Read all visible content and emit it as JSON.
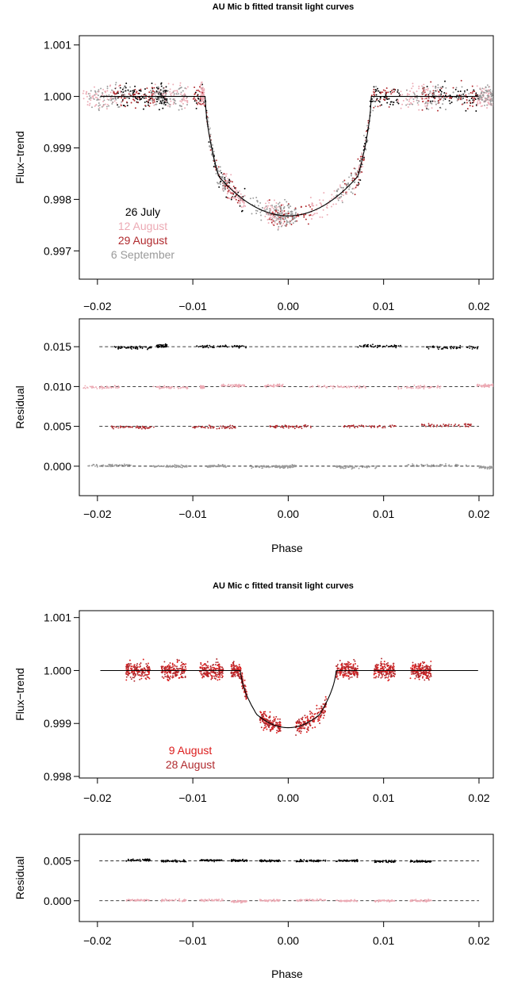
{
  "figure": {
    "title_b": "AU Mic b fitted transit light curves",
    "title_c": "AU Mic c fitted transit light curves"
  },
  "colors": {
    "black": "#000000",
    "pink": "#ecaab4",
    "darkred": "#b02a2e",
    "gray": "#9a9a9a",
    "red": "#dc1c1c"
  },
  "chart_data": [
    {
      "type": "scatter",
      "title": "AU Mic b fitted transit light curves",
      "xlabel": "",
      "ylabel": "Flux−trend",
      "xlim": [
        -0.0219,
        0.0215
      ],
      "ylim": [
        0.99645,
        1.00118
      ],
      "x_ticks": [
        "-0.02",
        "-0.01",
        "0.00",
        "0.01",
        "0.02"
      ],
      "y_ticks": [
        "0.997",
        "0.998",
        "0.999",
        "1.000",
        "1.001"
      ],
      "model": {
        "depth": 0.00232,
        "t1": 0.0087,
        "t2": 0.0073,
        "t3": 0.0085
      },
      "legend_position": "lower-left",
      "series": [
        {
          "name": "26 July",
          "color": "#000000",
          "x_ranges": [
            [
              -0.0183,
              -0.0142
            ],
            [
              -0.0138,
              -0.0127
            ],
            [
              -0.0098,
              -0.0044
            ],
            [
              0.0073,
              0.0118
            ],
            [
              0.0145,
              0.02
            ]
          ]
        },
        {
          "name": "12 August",
          "color": "#ecaab4",
          "x_ranges": [
            [
              -0.0215,
              -0.0175
            ],
            [
              -0.0143,
              -0.0105
            ],
            [
              -0.0092,
              -0.0088
            ],
            [
              -0.007,
              -0.0045
            ],
            [
              -0.0025,
              -0.0005
            ],
            [
              0.0022,
              0.0082
            ],
            [
              0.0115,
              0.016
            ],
            [
              0.0198,
              0.0215
            ]
          ]
        },
        {
          "name": "29 August",
          "color": "#b02a2e",
          "x_ranges": [
            [
              -0.0185,
              -0.014
            ],
            [
              -0.01,
              -0.0052
            ],
            [
              -0.002,
              0.0025
            ],
            [
              0.0057,
              0.0113
            ],
            [
              0.014,
              0.0197
            ]
          ]
        },
        {
          "name": "6 September",
          "color": "#9a9a9a",
          "x_ranges": [
            [
              -0.021,
              -0.0165
            ],
            [
              -0.0145,
              -0.0105
            ],
            [
              -0.0085,
              -0.0065
            ],
            [
              -0.004,
              0.0005
            ],
            [
              -0.0015,
              0.0008
            ],
            [
              0.005,
              0.0093
            ],
            [
              0.0123,
              0.019
            ],
            [
              0.02,
              0.0215
            ]
          ]
        }
      ]
    },
    {
      "type": "scatter",
      "title": "",
      "xlabel": "Phase",
      "ylabel": "Residual",
      "xlim": [
        -0.0219,
        0.0215
      ],
      "ylim": [
        -0.0037,
        0.0185
      ],
      "x_ticks": [
        "-0.02",
        "-0.01",
        "0.00",
        "0.01",
        "0.02"
      ],
      "y_ticks": [
        "0.000",
        "0.005",
        "0.010",
        "0.015"
      ],
      "reference_lines": [
        0.015,
        0.01,
        0.005,
        0.0
      ],
      "series": [
        {
          "name": "26 July",
          "color": "#000000",
          "offset": 0.015
        },
        {
          "name": "12 August",
          "color": "#ecaab4",
          "offset": 0.01
        },
        {
          "name": "29 August",
          "color": "#b02a2e",
          "offset": 0.005
        },
        {
          "name": "6 September",
          "color": "#9a9a9a",
          "offset": 0.0
        }
      ]
    },
    {
      "type": "scatter",
      "title": "AU Mic c fitted transit light curves",
      "xlabel": "",
      "ylabel": "Flux−trend",
      "xlim": [
        -0.0219,
        0.0215
      ],
      "ylim": [
        0.99797,
        1.00113
      ],
      "x_ticks": [
        "-0.02",
        "-0.01",
        "0.00",
        "0.01",
        "0.02"
      ],
      "y_ticks": [
        "0.998",
        "0.999",
        "1.000",
        "1.001"
      ],
      "model": {
        "depth": 0.00108,
        "t1": 0.005,
        "t2": 0.0033,
        "t3": 0.0046
      },
      "legend_position": "lower-left",
      "series": [
        {
          "name": "9 August",
          "color": "#dc1c1c",
          "x_ranges": [
            [
              -0.017,
              -0.0145
            ],
            [
              -0.0133,
              -0.0107
            ],
            [
              -0.0093,
              -0.0068
            ],
            [
              -0.006,
              -0.0043
            ],
            [
              -0.003,
              -0.0008
            ],
            [
              0.0008,
              0.004
            ],
            [
              0.005,
              0.0073
            ],
            [
              0.009,
              0.0112
            ],
            [
              0.0128,
              0.015
            ]
          ]
        },
        {
          "name": "28 August",
          "color": "#b02a2e",
          "x_ranges": [
            [
              -0.017,
              -0.0145
            ],
            [
              -0.0133,
              -0.0107
            ],
            [
              -0.0093,
              -0.0068
            ],
            [
              -0.006,
              -0.0043
            ],
            [
              -0.003,
              -0.0008
            ],
            [
              0.0008,
              0.004
            ],
            [
              0.005,
              0.0073
            ],
            [
              0.009,
              0.0112
            ],
            [
              0.0128,
              0.015
            ]
          ]
        }
      ]
    },
    {
      "type": "scatter",
      "title": "",
      "xlabel": "Phase",
      "ylabel": "Residual",
      "xlim": [
        -0.0219,
        0.0215
      ],
      "ylim": [
        -0.0026,
        0.0083
      ],
      "x_ticks": [
        "-0.02",
        "-0.01",
        "0.00",
        "0.01",
        "0.02"
      ],
      "y_ticks": [
        "0.000",
        "0.005"
      ],
      "reference_lines": [
        0.005,
        0.0
      ],
      "series": [
        {
          "color": "#000000",
          "offset": 0.005
        },
        {
          "color": "#ecaab4",
          "offset": 0.0
        }
      ]
    }
  ]
}
